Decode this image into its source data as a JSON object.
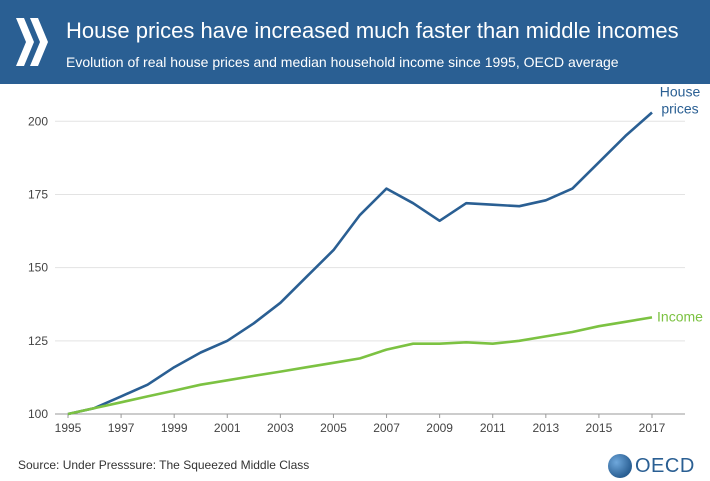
{
  "header": {
    "title": "House prices have increased much faster than middle incomes",
    "subtitle": "Evolution of real house prices and median household income since 1995, OECD average"
  },
  "footer": {
    "source": "Source: Under Presssure: The Squeezed Middle Class",
    "logo_text": "OECD"
  },
  "colors": {
    "header_bg": "#2a5f93",
    "house": "#2a5f93",
    "income": "#7cc242",
    "grid": "#e3e3e3"
  },
  "chart_data": {
    "type": "line",
    "x": [
      1995,
      1996,
      1997,
      1998,
      1999,
      2000,
      2001,
      2002,
      2003,
      2004,
      2005,
      2006,
      2007,
      2008,
      2009,
      2010,
      2011,
      2012,
      2013,
      2014,
      2015,
      2016,
      2017
    ],
    "x_tick_labels": [
      "1995",
      "1997",
      "1999",
      "2001",
      "2003",
      "2005",
      "2007",
      "2009",
      "2011",
      "2013",
      "2015",
      "2017"
    ],
    "y_ticks": [
      100,
      125,
      150,
      175,
      200
    ],
    "ylim": [
      100,
      210
    ],
    "grid": "horizontal",
    "series": [
      {
        "name": "House prices",
        "label_lines": [
          "House",
          "prices"
        ],
        "color": "#2a5f93",
        "values": [
          100,
          102,
          106,
          110,
          116,
          121,
          125,
          131,
          138,
          147,
          156,
          168,
          177,
          172,
          166,
          172,
          171.5,
          171,
          173,
          177,
          186,
          195,
          203
        ]
      },
      {
        "name": "Income",
        "label_lines": [
          "Income"
        ],
        "color": "#7cc242",
        "values": [
          100,
          102,
          104,
          106,
          108,
          110,
          111.5,
          113,
          114.5,
          116,
          117.5,
          119,
          122,
          124,
          124,
          124.5,
          124,
          125,
          126.5,
          128,
          130,
          131.5,
          133
        ]
      }
    ]
  }
}
